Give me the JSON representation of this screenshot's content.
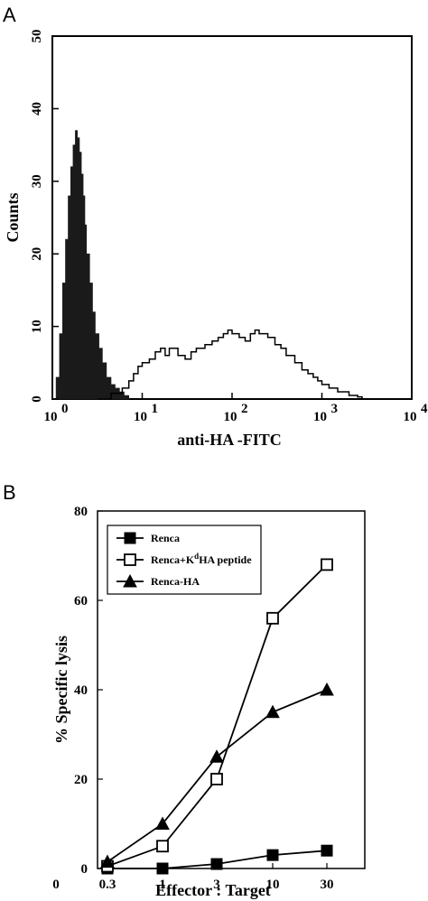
{
  "panels": {
    "a_label": "A",
    "b_label": "B"
  },
  "chart_data": [
    {
      "type": "area",
      "panel": "A",
      "xlabel": "anti-HA -FITC",
      "ylabel": "Counts",
      "x_scale": "log",
      "xlim": [
        1,
        10000
      ],
      "ylim": [
        0,
        50
      ],
      "x_ticks": [
        {
          "base": "10",
          "exp": "0",
          "value": 1
        },
        {
          "base": "10",
          "exp": "1",
          "value": 10
        },
        {
          "base": "10",
          "exp": "2",
          "value": 100
        },
        {
          "base": "10",
          "exp": "3",
          "value": 1000
        },
        {
          "base": "10",
          "exp": "4",
          "value": 10000
        }
      ],
      "y_ticks": [
        "0",
        "10",
        "20",
        "30",
        "40",
        "50"
      ],
      "y_tick_values": [
        0,
        10,
        20,
        30,
        40,
        50
      ],
      "series": [
        {
          "style": "filled",
          "color": "#1a1a1a",
          "x": [
            1.0,
            1.1,
            1.2,
            1.3,
            1.4,
            1.5,
            1.6,
            1.7,
            1.8,
            1.9,
            2.0,
            2.1,
            2.2,
            2.3,
            2.4,
            2.6,
            2.8,
            3.0,
            3.3,
            3.6,
            4.0,
            4.5,
            5.0,
            5.6,
            6.3,
            7.1
          ],
          "y": [
            0,
            3,
            9,
            16,
            22,
            28,
            32,
            35,
            37,
            36,
            34,
            31,
            28,
            24,
            20,
            16,
            12,
            9,
            7,
            5,
            3,
            2,
            1.5,
            1,
            0.5,
            0
          ]
        },
        {
          "style": "outline",
          "color": "#000000",
          "x": [
            3.2,
            4.5,
            6.0,
            7.1,
            8.0,
            9.0,
            10,
            12,
            14,
            16,
            18,
            20,
            25,
            30,
            35,
            40,
            50,
            60,
            70,
            80,
            90,
            100,
            120,
            140,
            160,
            180,
            200,
            250,
            300,
            350,
            400,
            500,
            600,
            700,
            800,
            900,
            1000,
            1200,
            1500,
            2000,
            2500,
            2800
          ],
          "y": [
            0,
            0.8,
            1.5,
            2.5,
            3.5,
            4.5,
            5,
            5.5,
            6.5,
            7,
            6,
            7,
            6,
            5.5,
            6.5,
            7,
            7.5,
            8,
            8.5,
            9,
            9.5,
            9,
            8.5,
            8,
            9,
            9.5,
            9,
            8.5,
            7.5,
            7,
            6,
            5,
            4,
            3.5,
            3,
            2.5,
            2,
            1.5,
            1,
            0.5,
            0.3,
            0
          ]
        }
      ]
    },
    {
      "type": "line",
      "panel": "B",
      "xlabel": "Effector : Target",
      "ylabel": "% Specific lysis",
      "ylim": [
        0,
        80
      ],
      "y_ticks": [
        "0",
        "20",
        "40",
        "60",
        "80"
      ],
      "y_tick_values": [
        0,
        20,
        40,
        60,
        80
      ],
      "categories": [
        "0",
        "0.3",
        "1",
        "3",
        "10",
        "30"
      ],
      "legend_placement": "top-left",
      "series": [
        {
          "name": "Renca",
          "marker": "filled-square",
          "x": [
            "0.3",
            "1",
            "3",
            "10",
            "30"
          ],
          "values": [
            0,
            0,
            1,
            3,
            4
          ]
        },
        {
          "name": "Renca+K",
          "name_sup": "d",
          "name_suffix": "HA peptide",
          "marker": "open-square",
          "x": [
            "0.3",
            "1",
            "3",
            "10",
            "30"
          ],
          "values": [
            0.5,
            5,
            20,
            56,
            68
          ]
        },
        {
          "name": "Renca-HA",
          "marker": "filled-triangle",
          "x": [
            "0.3",
            "1",
            "3",
            "10",
            "30"
          ],
          "values": [
            1.5,
            10,
            25,
            35,
            40
          ]
        }
      ]
    }
  ]
}
